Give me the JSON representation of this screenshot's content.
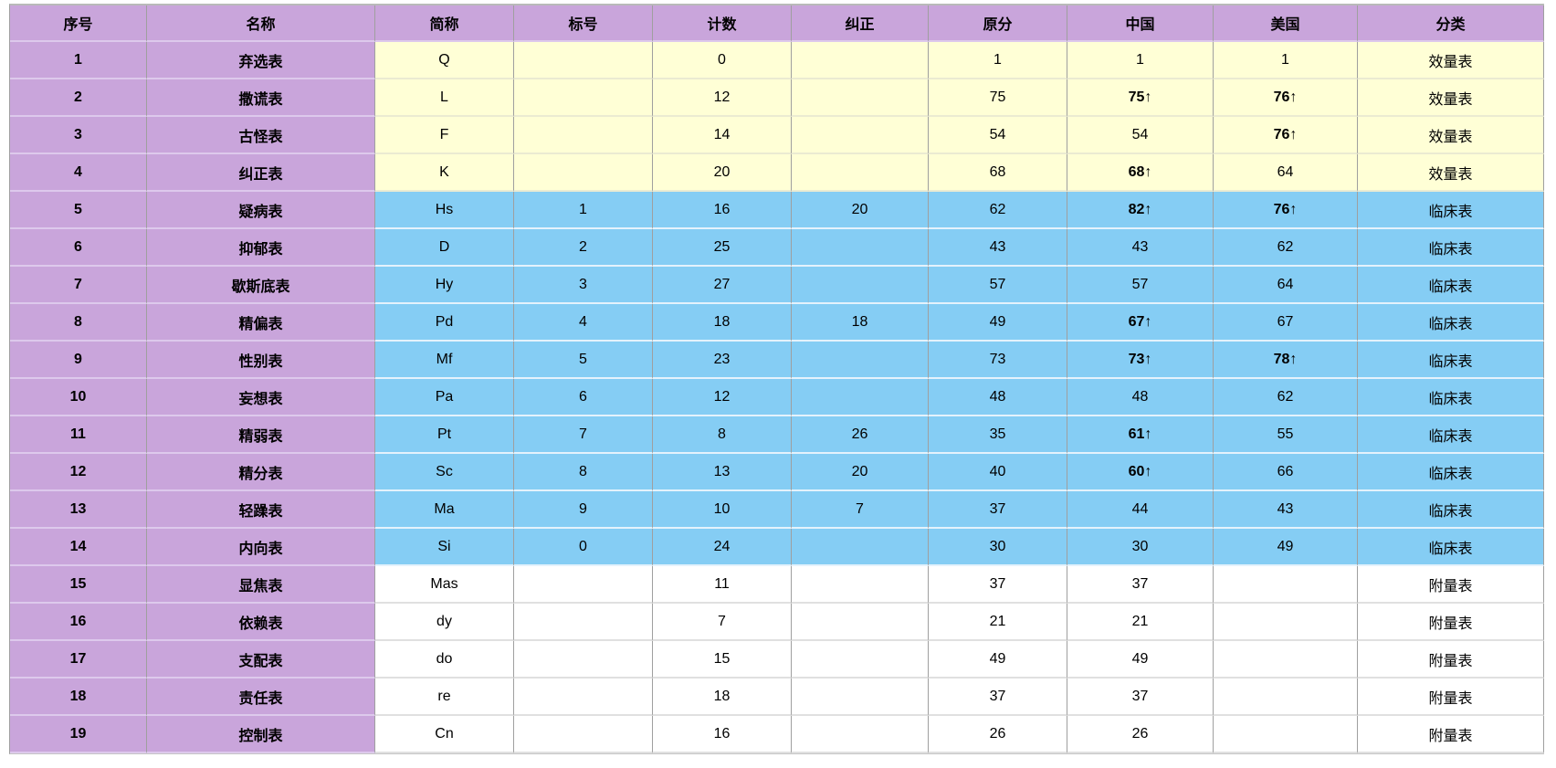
{
  "colors": {
    "header_purple": "#c9a5db",
    "validity_yellow": "#ffffd6",
    "clinical_blue": "#85cdf4",
    "supplementary_white": "#ffffff",
    "text": "#000000"
  },
  "chart_data": {
    "type": "table",
    "columns": [
      "序号",
      "名称",
      "简称",
      "标号",
      "计数",
      "纠正",
      "原分",
      "中国",
      "美国",
      "分类"
    ],
    "rows": [
      {
        "num": "1",
        "name": "弃选表",
        "abbr": "Q",
        "label": "",
        "count": "0",
        "corr": "",
        "raw": "1",
        "china": "1",
        "usa": "1",
        "category": "效量表",
        "group": "validity"
      },
      {
        "num": "2",
        "name": "撒谎表",
        "abbr": "L",
        "label": "",
        "count": "12",
        "corr": "",
        "raw": "75",
        "china": "75↑",
        "usa": "76↑",
        "category": "效量表",
        "group": "validity"
      },
      {
        "num": "3",
        "name": "古怪表",
        "abbr": "F",
        "label": "",
        "count": "14",
        "corr": "",
        "raw": "54",
        "china": "54",
        "usa": "76↑",
        "category": "效量表",
        "group": "validity"
      },
      {
        "num": "4",
        "name": "纠正表",
        "abbr": "K",
        "label": "",
        "count": "20",
        "corr": "",
        "raw": "68",
        "china": "68↑",
        "usa": "64",
        "category": "效量表",
        "group": "validity"
      },
      {
        "num": "5",
        "name": "疑病表",
        "abbr": "Hs",
        "label": "1",
        "count": "16",
        "corr": "20",
        "raw": "62",
        "china": "82↑",
        "usa": "76↑",
        "category": "临床表",
        "group": "clinical"
      },
      {
        "num": "6",
        "name": "抑郁表",
        "abbr": "D",
        "label": "2",
        "count": "25",
        "corr": "",
        "raw": "43",
        "china": "43",
        "usa": "62",
        "category": "临床表",
        "group": "clinical"
      },
      {
        "num": "7",
        "name": "歇斯底表",
        "abbr": "Hy",
        "label": "3",
        "count": "27",
        "corr": "",
        "raw": "57",
        "china": "57",
        "usa": "64",
        "category": "临床表",
        "group": "clinical"
      },
      {
        "num": "8",
        "name": "精偏表",
        "abbr": "Pd",
        "label": "4",
        "count": "18",
        "corr": "18",
        "raw": "49",
        "china": "67↑",
        "usa": "67",
        "category": "临床表",
        "group": "clinical"
      },
      {
        "num": "9",
        "name": "性别表",
        "abbr": "Mf",
        "label": "5",
        "count": "23",
        "corr": "",
        "raw": "73",
        "china": "73↑",
        "usa": "78↑",
        "category": "临床表",
        "group": "clinical"
      },
      {
        "num": "10",
        "name": "妄想表",
        "abbr": "Pa",
        "label": "6",
        "count": "12",
        "corr": "",
        "raw": "48",
        "china": "48",
        "usa": "62",
        "category": "临床表",
        "group": "clinical"
      },
      {
        "num": "11",
        "name": "精弱表",
        "abbr": "Pt",
        "label": "7",
        "count": "8",
        "corr": "26",
        "raw": "35",
        "china": "61↑",
        "usa": "55",
        "category": "临床表",
        "group": "clinical"
      },
      {
        "num": "12",
        "name": "精分表",
        "abbr": "Sc",
        "label": "8",
        "count": "13",
        "corr": "20",
        "raw": "40",
        "china": "60↑",
        "usa": "66",
        "category": "临床表",
        "group": "clinical"
      },
      {
        "num": "13",
        "name": "轻躁表",
        "abbr": "Ma",
        "label": "9",
        "count": "10",
        "corr": "7",
        "raw": "37",
        "china": "44",
        "usa": "43",
        "category": "临床表",
        "group": "clinical"
      },
      {
        "num": "14",
        "name": "内向表",
        "abbr": "Si",
        "label": "0",
        "count": "24",
        "corr": "",
        "raw": "30",
        "china": "30",
        "usa": "49",
        "category": "临床表",
        "group": "clinical"
      },
      {
        "num": "15",
        "name": "显焦表",
        "abbr": "Mas",
        "label": "",
        "count": "11",
        "corr": "",
        "raw": "37",
        "china": "37",
        "usa": "",
        "category": "附量表",
        "group": "supplementary"
      },
      {
        "num": "16",
        "name": "依赖表",
        "abbr": "dy",
        "label": "",
        "count": "7",
        "corr": "",
        "raw": "21",
        "china": "21",
        "usa": "",
        "category": "附量表",
        "group": "supplementary"
      },
      {
        "num": "17",
        "name": "支配表",
        "abbr": "do",
        "label": "",
        "count": "15",
        "corr": "",
        "raw": "49",
        "china": "49",
        "usa": "",
        "category": "附量表",
        "group": "supplementary"
      },
      {
        "num": "18",
        "name": "责任表",
        "abbr": "re",
        "label": "",
        "count": "18",
        "corr": "",
        "raw": "37",
        "china": "37",
        "usa": "",
        "category": "附量表",
        "group": "supplementary"
      },
      {
        "num": "19",
        "name": "控制表",
        "abbr": "Cn",
        "label": "",
        "count": "16",
        "corr": "",
        "raw": "26",
        "china": "26",
        "usa": "",
        "category": "附量表",
        "group": "supplementary"
      }
    ]
  }
}
